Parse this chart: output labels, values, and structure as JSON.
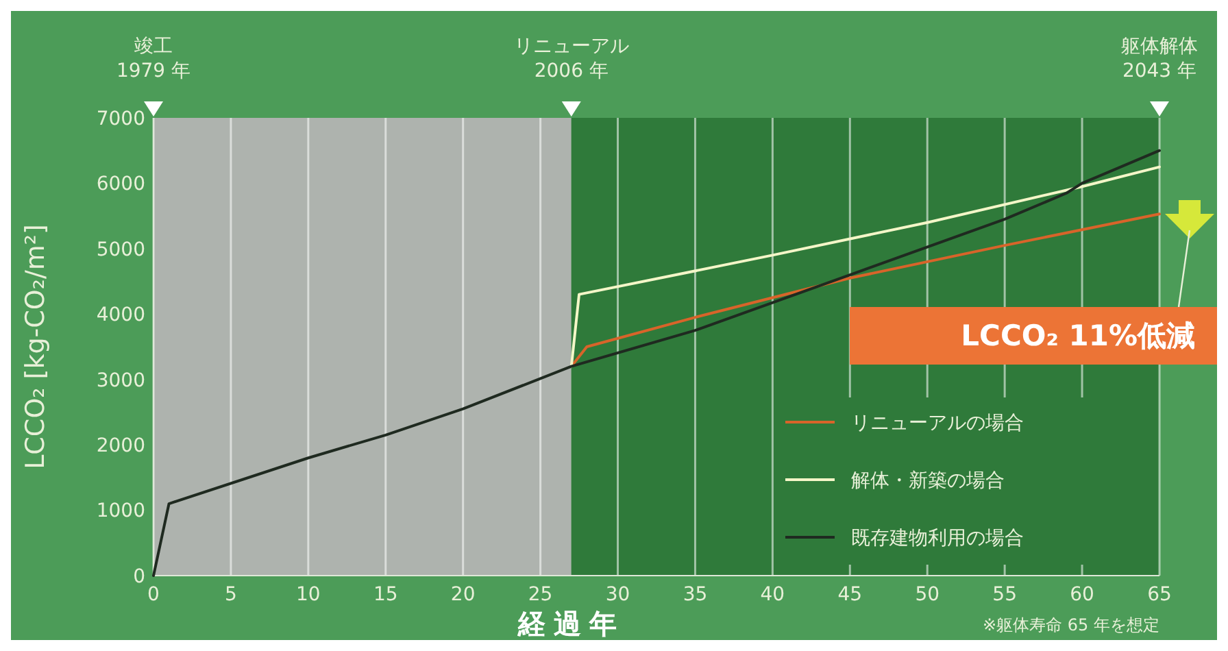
{
  "chart_data": {
    "type": "line",
    "xlabel": "経過年",
    "ylabel": "LCCO₂ [kg-CO₂/m²]",
    "xlim": [
      0,
      65
    ],
    "xticks": [
      0,
      5,
      10,
      15,
      20,
      25,
      30,
      35,
      40,
      45,
      50,
      55,
      60,
      65
    ],
    "ylim": [
      0,
      7000
    ],
    "yticks": [
      0,
      1000,
      2000,
      3000,
      4000,
      5000,
      6000,
      7000
    ],
    "grid": "x",
    "legend": "bottom right",
    "marker": "none",
    "line_style": "solid",
    "series": [
      {
        "name": "リニューアルの場合",
        "color": "#d8642a",
        "x": [
          27,
          28,
          35,
          45,
          55,
          65
        ],
        "values": [
          3200,
          3500,
          3950,
          4550,
          5050,
          5530
        ]
      },
      {
        "name": "解体・新築の場合",
        "color": "#f4f6c8",
        "x": [
          27,
          27.5,
          40,
          50,
          60,
          65
        ],
        "values": [
          3200,
          4300,
          4900,
          5400,
          5950,
          6250
        ]
      },
      {
        "name": "既存建物利用の場合",
        "color": "#1f2a20",
        "x": [
          0,
          1,
          10,
          15,
          20,
          27,
          35,
          45,
          55,
          59,
          60,
          65
        ],
        "values": [
          0,
          1100,
          1800,
          2150,
          2550,
          3200,
          3750,
          4600,
          5450,
          5850,
          6000,
          6500
        ]
      }
    ],
    "bands": [
      {
        "axis": "x",
        "from": 0,
        "to": 27,
        "color": "#aeb3ae"
      },
      {
        "axis": "x",
        "from": 27,
        "to": 65,
        "color": "#2f7a3a"
      }
    ],
    "annotations": [
      {
        "text": "竣工\n1979 年",
        "x": 0,
        "y": 7000
      },
      {
        "text": "リニューアル\n2006 年",
        "x": 27,
        "y": 7000
      },
      {
        "text": "躯体解体\n2043 年",
        "x": 65,
        "y": 7000
      },
      "LCCO₂  11%低減",
      "※躯体寿命 65 年を想定"
    ]
  }
}
